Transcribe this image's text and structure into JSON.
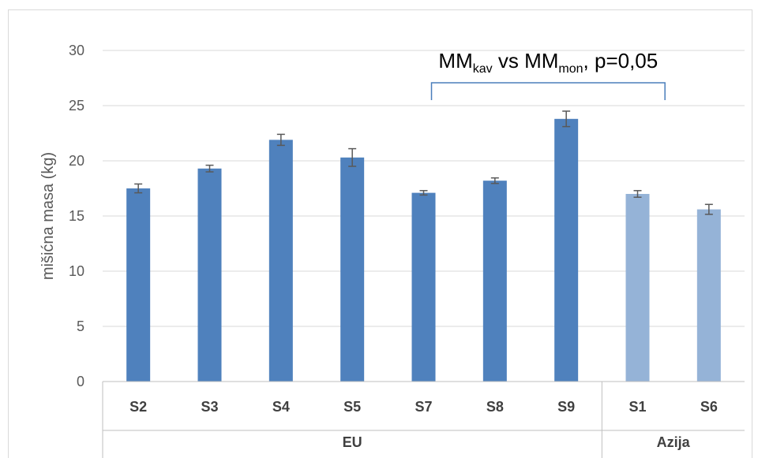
{
  "chart_data": {
    "type": "bar",
    "ylabel": "mišićna masa (kg)",
    "ylim": [
      0,
      30
    ],
    "yticks": [
      0,
      5,
      10,
      15,
      20,
      25,
      30
    ],
    "grid": true,
    "categories": [
      "S2",
      "S3",
      "S4",
      "S5",
      "S7",
      "S8",
      "S9",
      "S1",
      "S6"
    ],
    "values": [
      17.5,
      19.3,
      21.9,
      20.3,
      17.1,
      18.2,
      23.8,
      17.0,
      15.6
    ],
    "errors": [
      0.4,
      0.3,
      0.5,
      0.8,
      0.2,
      0.25,
      0.7,
      0.3,
      0.45
    ],
    "groups": [
      {
        "label": "EU",
        "count": 7
      },
      {
        "label": "Azija",
        "count": 2
      }
    ],
    "colors": {
      "EU": "#4f81bd",
      "Azija": "#95b3d7",
      "error_bar": "#595959",
      "bracket": "#4a7ebb"
    },
    "annotation": {
      "base1": "MM",
      "sub1": "kav",
      "mid": " vs MM",
      "sub2": "mon",
      "tail": ", p=0,05",
      "from_category": "S7",
      "to_category": "S9"
    }
  }
}
